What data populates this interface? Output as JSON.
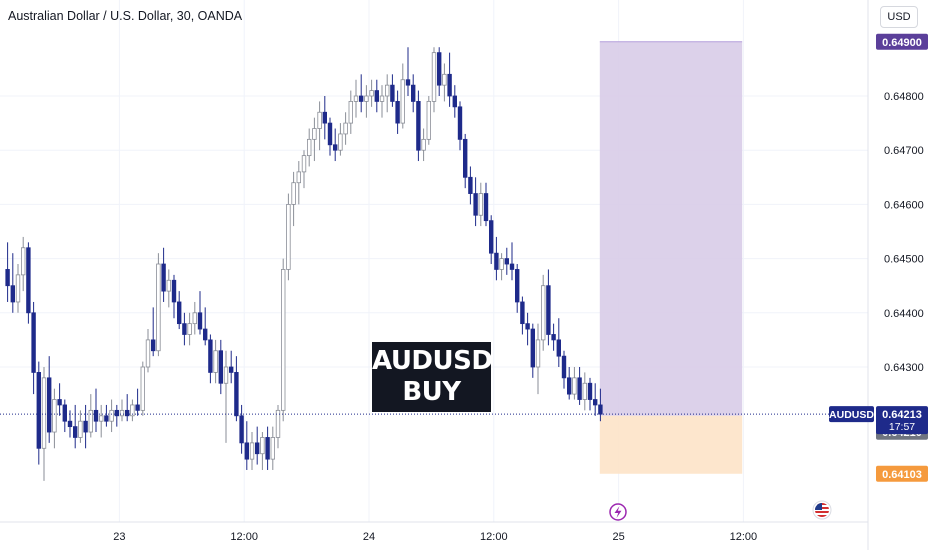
{
  "header": {
    "symbol_title": "Australian Dollar / U.S. Dollar, 30, OANDA",
    "currency_label": "USD"
  },
  "banner": {
    "line1": "AUDUSD",
    "line2": "BUY"
  },
  "colors": {
    "bull": "#ffffff",
    "bull_outline": "#8a8e97",
    "bear": "#1e2a8a",
    "profit_zone": "#d8cce8",
    "loss_zone": "#fde3c8",
    "target_tag": "#5b3f9a",
    "stop_tag": "#f59a3d",
    "price_tag": "#1e2a8a",
    "entry_tag": "#6f7480"
  },
  "chart_data": {
    "type": "candlestick",
    "title": "Australian Dollar / U.S. Dollar, 30, OANDA",
    "timeframe": "30",
    "y_axis": {
      "range": [
        0.6406,
        0.6492
      ],
      "ticks": [
        "0.64300",
        "0.64400",
        "0.64500",
        "0.64600",
        "0.64700",
        "0.64800"
      ]
    },
    "x_axis": {
      "range_bars": [
        0,
        126
      ],
      "ticks": [
        {
          "label": "23",
          "bar": 22
        },
        {
          "label": "12:00",
          "bar": 46
        },
        {
          "label": "24",
          "bar": 70
        },
        {
          "label": "12:00",
          "bar": 94
        },
        {
          "label": "25",
          "bar": 118
        },
        {
          "label": "12:00",
          "bar": 142
        }
      ]
    },
    "current_price": {
      "symbol": "AUDUSD",
      "price": "0.64213",
      "countdown": "17:57",
      "value": 0.64213
    },
    "position": {
      "side": "long",
      "entry": {
        "label": "0.64210",
        "value": 0.6421
      },
      "target": {
        "label": "0.64900",
        "value": 0.649
      },
      "stop": {
        "label": "0.64103",
        "value": 0.64103
      },
      "bar_start": 114,
      "bar_end": 141
    },
    "candles": [
      [
        0.6448,
        0.6453,
        0.6442,
        0.6445
      ],
      [
        0.6445,
        0.6451,
        0.644,
        0.6442
      ],
      [
        0.6442,
        0.6449,
        0.644,
        0.6447
      ],
      [
        0.6447,
        0.6454,
        0.6444,
        0.6452
      ],
      [
        0.6452,
        0.6453,
        0.6438,
        0.644
      ],
      [
        0.644,
        0.6442,
        0.6425,
        0.6429
      ],
      [
        0.6429,
        0.6431,
        0.6412,
        0.6415
      ],
      [
        0.6415,
        0.643,
        0.6409,
        0.6428
      ],
      [
        0.6428,
        0.6432,
        0.6416,
        0.6418
      ],
      [
        0.6418,
        0.6426,
        0.6415,
        0.6424
      ],
      [
        0.6424,
        0.6427,
        0.6421,
        0.6423
      ],
      [
        0.6423,
        0.6424,
        0.6418,
        0.642
      ],
      [
        0.642,
        0.6422,
        0.6417,
        0.6419
      ],
      [
        0.6419,
        0.6423,
        0.6415,
        0.6417
      ],
      [
        0.6417,
        0.6422,
        0.6416,
        0.642
      ],
      [
        0.642,
        0.6423,
        0.6415,
        0.6418
      ],
      [
        0.6418,
        0.6425,
        0.6417,
        0.6422
      ],
      [
        0.6422,
        0.6426,
        0.6418,
        0.642
      ],
      [
        0.642,
        0.6423,
        0.6417,
        0.6421
      ],
      [
        0.6421,
        0.6423,
        0.6419,
        0.642
      ],
      [
        0.642,
        0.6424,
        0.6418,
        0.6422
      ],
      [
        0.6422,
        0.6423,
        0.6419,
        0.6421
      ],
      [
        0.6421,
        0.6424,
        0.642,
        0.6422
      ],
      [
        0.6422,
        0.6425,
        0.642,
        0.6421
      ],
      [
        0.6421,
        0.6424,
        0.642,
        0.6423
      ],
      [
        0.6423,
        0.6426,
        0.6421,
        0.6422
      ],
      [
        0.6422,
        0.6431,
        0.6421,
        0.643
      ],
      [
        0.643,
        0.6437,
        0.6429,
        0.6435
      ],
      [
        0.6435,
        0.6441,
        0.6432,
        0.6433
      ],
      [
        0.6433,
        0.6451,
        0.6432,
        0.6449
      ],
      [
        0.6449,
        0.6452,
        0.6442,
        0.6444
      ],
      [
        0.6444,
        0.6448,
        0.6441,
        0.6446
      ],
      [
        0.6446,
        0.6447,
        0.6439,
        0.6442
      ],
      [
        0.6442,
        0.6444,
        0.6437,
        0.6438
      ],
      [
        0.6438,
        0.644,
        0.6434,
        0.6436
      ],
      [
        0.6436,
        0.644,
        0.6434,
        0.6438
      ],
      [
        0.6438,
        0.6442,
        0.6436,
        0.644
      ],
      [
        0.644,
        0.6444,
        0.6436,
        0.6437
      ],
      [
        0.6437,
        0.6441,
        0.6434,
        0.6435
      ],
      [
        0.6435,
        0.6436,
        0.6427,
        0.6429
      ],
      [
        0.6429,
        0.6435,
        0.6427,
        0.6433
      ],
      [
        0.6433,
        0.6435,
        0.6425,
        0.6427
      ],
      [
        0.6427,
        0.6433,
        0.6416,
        0.643
      ],
      [
        0.643,
        0.6433,
        0.6427,
        0.6429
      ],
      [
        0.6429,
        0.6432,
        0.642,
        0.6421
      ],
      [
        0.6421,
        0.6423,
        0.6414,
        0.6416
      ],
      [
        0.6416,
        0.642,
        0.6411,
        0.6413
      ],
      [
        0.6413,
        0.6418,
        0.6411,
        0.6416
      ],
      [
        0.6416,
        0.6419,
        0.6412,
        0.6414
      ],
      [
        0.6414,
        0.6418,
        0.6411,
        0.6417
      ],
      [
        0.6417,
        0.6419,
        0.6411,
        0.6413
      ],
      [
        0.6413,
        0.6419,
        0.6411,
        0.6417
      ],
      [
        0.6417,
        0.6423,
        0.6415,
        0.6422
      ],
      [
        0.6422,
        0.645,
        0.642,
        0.6448
      ],
      [
        0.6448,
        0.6462,
        0.6446,
        0.646
      ],
      [
        0.646,
        0.6466,
        0.6456,
        0.6464
      ],
      [
        0.6464,
        0.6468,
        0.646,
        0.6466
      ],
      [
        0.6466,
        0.647,
        0.6463,
        0.6469
      ],
      [
        0.6469,
        0.6474,
        0.6467,
        0.6472
      ],
      [
        0.6472,
        0.6476,
        0.6468,
        0.6474
      ],
      [
        0.6474,
        0.6479,
        0.647,
        0.6477
      ],
      [
        0.6477,
        0.648,
        0.6472,
        0.6475
      ],
      [
        0.6475,
        0.6476,
        0.6469,
        0.6471
      ],
      [
        0.6471,
        0.6474,
        0.6468,
        0.647
      ],
      [
        0.647,
        0.6475,
        0.6469,
        0.6473
      ],
      [
        0.6473,
        0.6477,
        0.6471,
        0.6475
      ],
      [
        0.6475,
        0.6481,
        0.6473,
        0.6479
      ],
      [
        0.6479,
        0.6483,
        0.6476,
        0.648
      ],
      [
        0.648,
        0.6484,
        0.6477,
        0.6479
      ],
      [
        0.6479,
        0.6482,
        0.6476,
        0.648
      ],
      [
        0.648,
        0.6483,
        0.6478,
        0.6481
      ],
      [
        0.6481,
        0.6483,
        0.6477,
        0.6479
      ],
      [
        0.6479,
        0.6482,
        0.6476,
        0.648
      ],
      [
        0.648,
        0.6484,
        0.6477,
        0.6482
      ],
      [
        0.6482,
        0.6484,
        0.6478,
        0.6479
      ],
      [
        0.6479,
        0.6481,
        0.6473,
        0.6475
      ],
      [
        0.6475,
        0.6486,
        0.6474,
        0.6483
      ],
      [
        0.6483,
        0.6489,
        0.648,
        0.6482
      ],
      [
        0.6482,
        0.6484,
        0.6477,
        0.6479
      ],
      [
        0.6479,
        0.6481,
        0.6468,
        0.647
      ],
      [
        0.647,
        0.6474,
        0.6468,
        0.6472
      ],
      [
        0.6472,
        0.648,
        0.6471,
        0.6479
      ],
      [
        0.6479,
        0.6489,
        0.6477,
        0.6488
      ],
      [
        0.6488,
        0.6489,
        0.648,
        0.6482
      ],
      [
        0.6482,
        0.6486,
        0.6479,
        0.6484
      ],
      [
        0.6484,
        0.6488,
        0.6478,
        0.648
      ],
      [
        0.648,
        0.6482,
        0.6476,
        0.6478
      ],
      [
        0.6478,
        0.6479,
        0.647,
        0.6472
      ],
      [
        0.6472,
        0.6473,
        0.6463,
        0.6465
      ],
      [
        0.6465,
        0.6467,
        0.646,
        0.6462
      ],
      [
        0.6462,
        0.6465,
        0.6456,
        0.6458
      ],
      [
        0.6458,
        0.6464,
        0.6456,
        0.6462
      ],
      [
        0.6462,
        0.6464,
        0.6456,
        0.6457
      ],
      [
        0.6457,
        0.6458,
        0.6449,
        0.6451
      ],
      [
        0.6451,
        0.6454,
        0.6446,
        0.6448
      ],
      [
        0.6448,
        0.6451,
        0.6446,
        0.645
      ],
      [
        0.645,
        0.6452,
        0.6447,
        0.6449
      ],
      [
        0.6449,
        0.6453,
        0.6446,
        0.6448
      ],
      [
        0.6448,
        0.6449,
        0.644,
        0.6442
      ],
      [
        0.6442,
        0.6443,
        0.6436,
        0.6438
      ],
      [
        0.6438,
        0.644,
        0.6434,
        0.6437
      ],
      [
        0.6437,
        0.6438,
        0.6428,
        0.643
      ],
      [
        0.643,
        0.6438,
        0.6425,
        0.6435
      ],
      [
        0.6435,
        0.6447,
        0.6433,
        0.6445
      ],
      [
        0.6445,
        0.6448,
        0.6434,
        0.6436
      ],
      [
        0.6436,
        0.6438,
        0.6433,
        0.6435
      ],
      [
        0.6435,
        0.6439,
        0.643,
        0.6432
      ],
      [
        0.6432,
        0.6433,
        0.6426,
        0.6428
      ],
      [
        0.6428,
        0.643,
        0.6424,
        0.6425
      ],
      [
        0.6425,
        0.643,
        0.6424,
        0.6428
      ],
      [
        0.6428,
        0.643,
        0.6423,
        0.6424
      ],
      [
        0.6424,
        0.6429,
        0.6422,
        0.6427
      ],
      [
        0.6427,
        0.6428,
        0.6422,
        0.6424
      ],
      [
        0.6424,
        0.6427,
        0.6421,
        0.6423
      ],
      [
        0.6423,
        0.6426,
        0.642,
        0.64213
      ]
    ]
  }
}
